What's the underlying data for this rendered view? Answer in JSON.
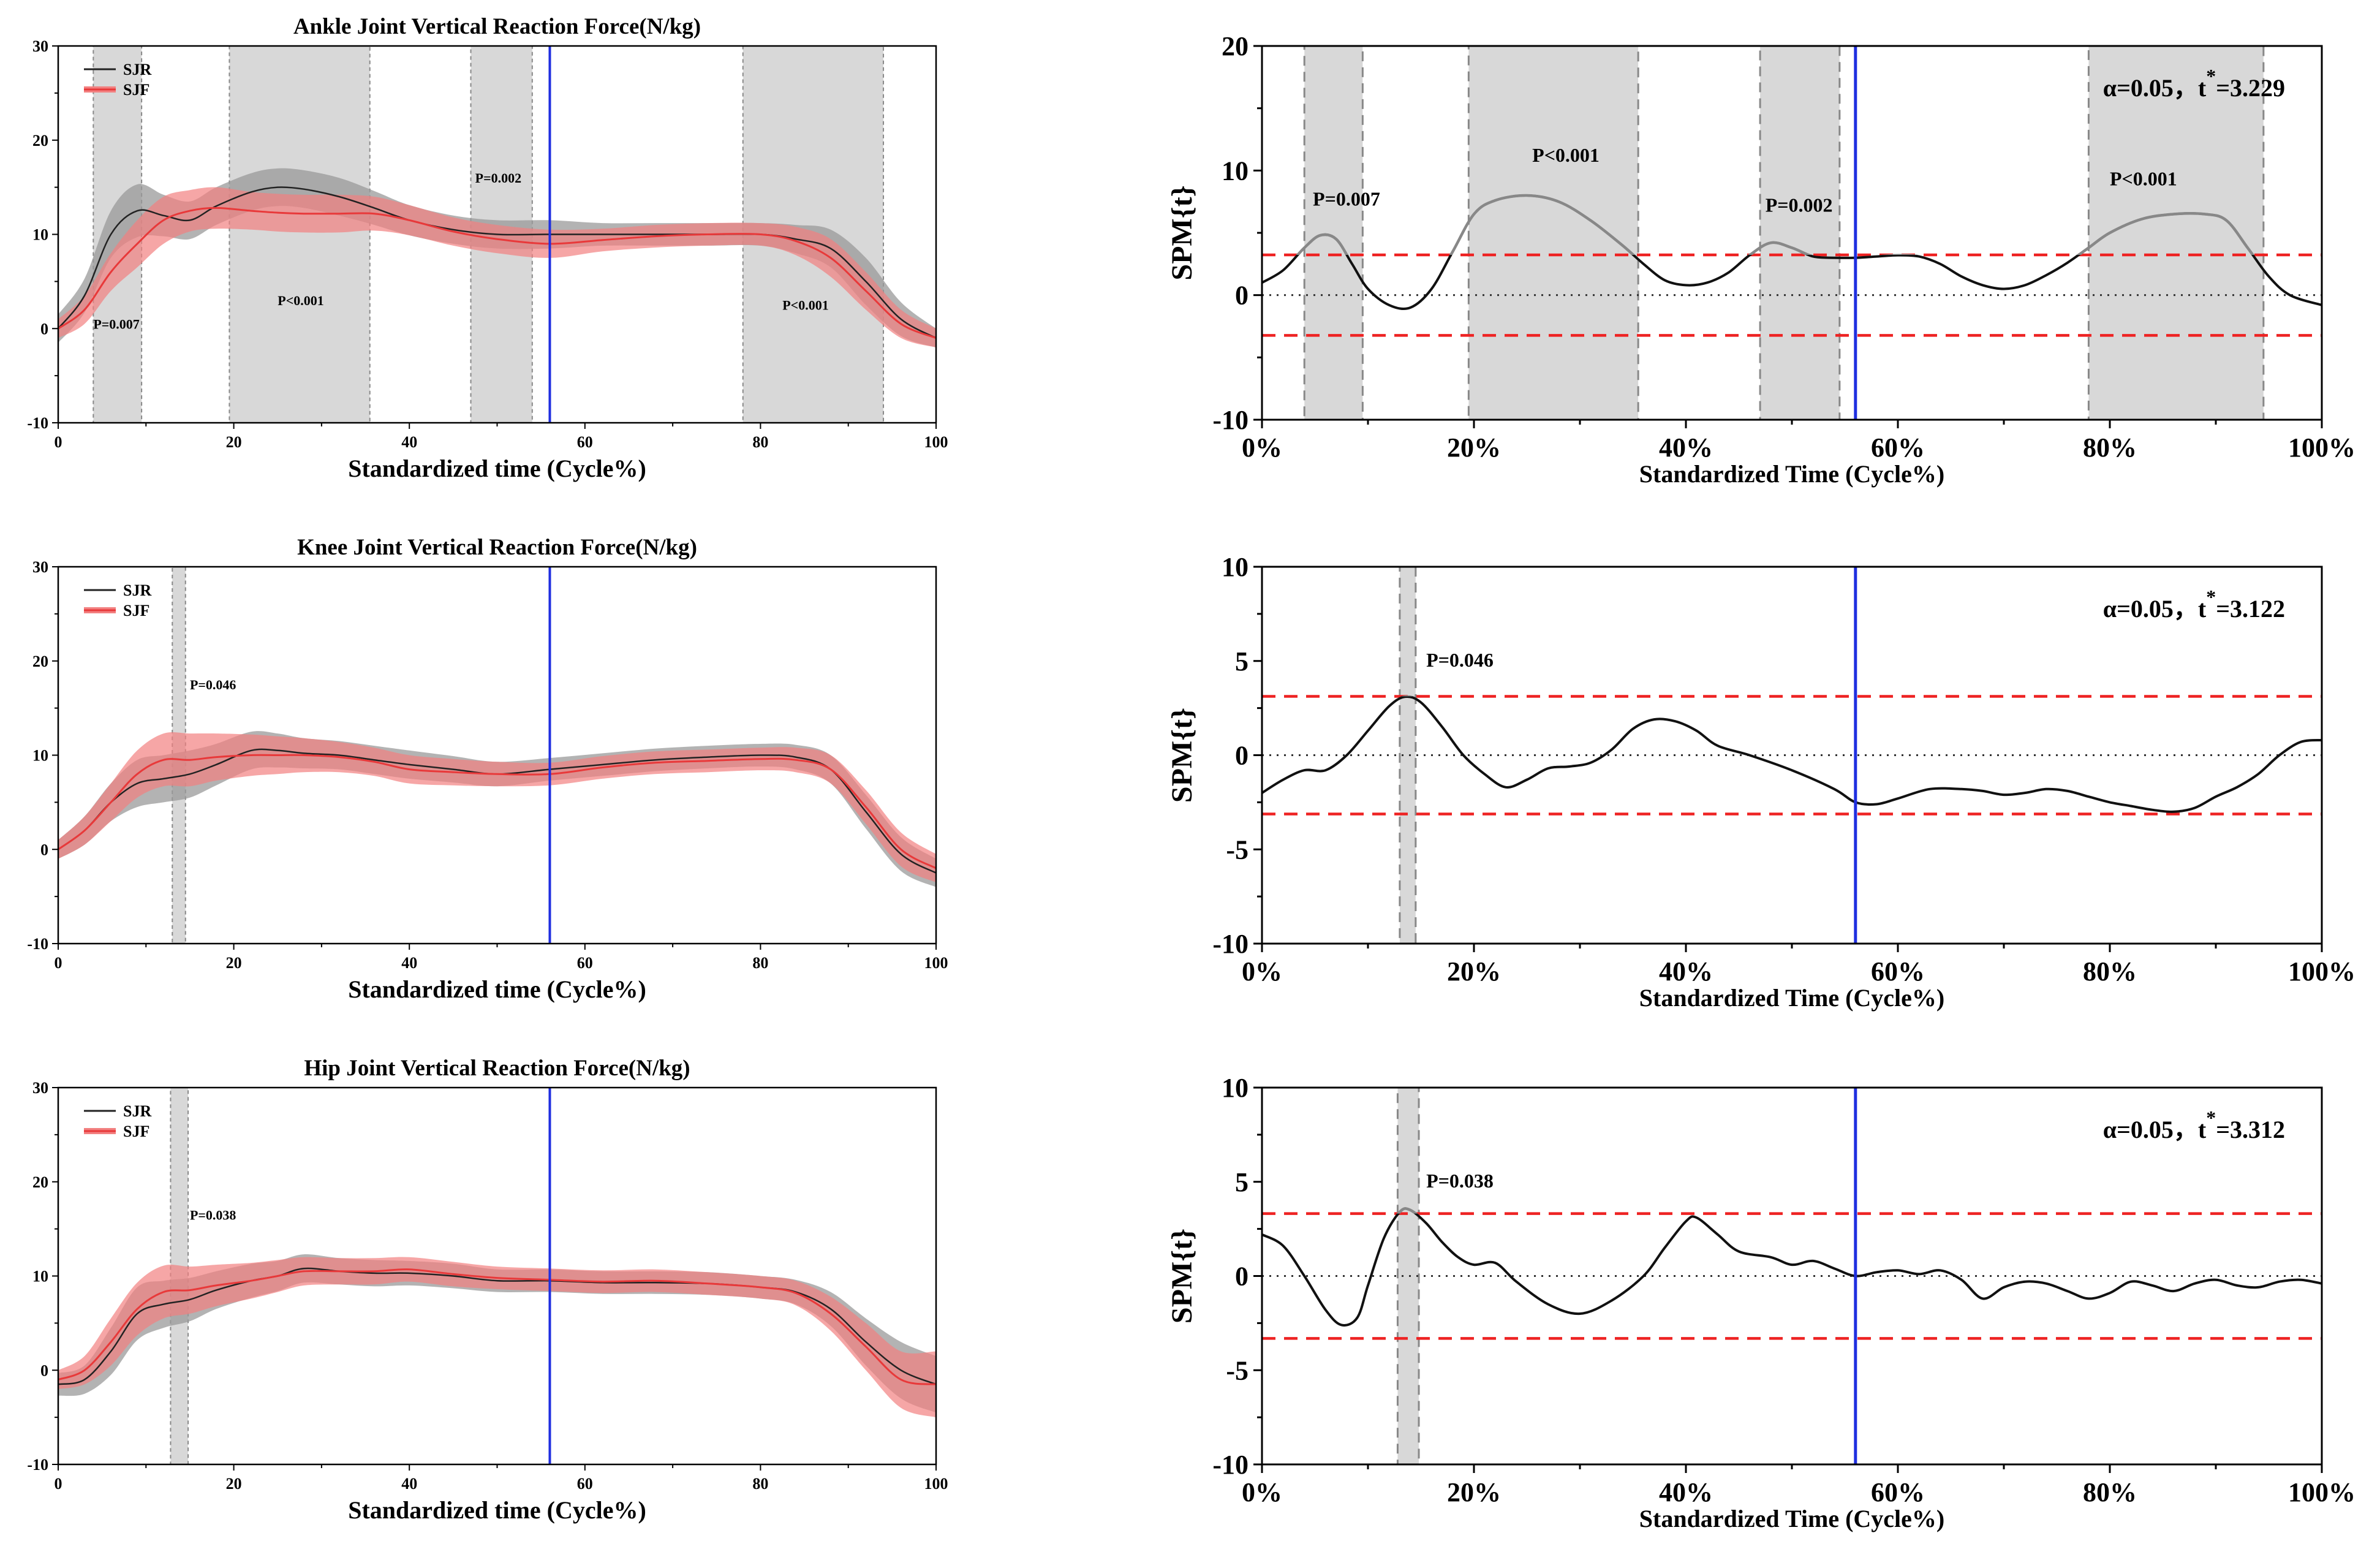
{
  "colors": {
    "sjr": "#222222",
    "sjr_band": "#9a9a9a",
    "sjf": "#e8393a",
    "sjf_band": "#f28080",
    "sig_region": "#d8d8d8",
    "sig_border": "#888888",
    "stance_line": "#1f2fe0",
    "threshold": "#ee2222",
    "spm_curve": "#111111",
    "spm_curve_sig": "#888888"
  },
  "chart_data": [
    {
      "type": "line",
      "panel": "left",
      "title": "Ankle Joint Vertical Reaction Force(N/kg)",
      "xlabel": "Standardized time (Cycle%)",
      "ylabel": "",
      "xlim": [
        0,
        100
      ],
      "ylim": [
        -10,
        30
      ],
      "xticks": [
        0,
        20,
        40,
        60,
        80,
        100
      ],
      "xtick_labels": [
        "0",
        "20",
        "40",
        "60",
        "80",
        "100"
      ],
      "yticks": [
        -10,
        0,
        10,
        20,
        30
      ],
      "ytick_labels": [
        "-10",
        "0",
        "10",
        "20",
        "30"
      ],
      "legend": [
        "SJR",
        "SJF"
      ],
      "legend_position": "top-left",
      "vline_x": 56,
      "x": [
        0,
        3,
        6,
        9,
        12,
        15,
        18,
        22,
        25,
        28,
        32,
        36,
        40,
        45,
        50,
        56,
        62,
        68,
        74,
        80,
        84,
        88,
        92,
        96,
        100
      ],
      "series": [
        {
          "name": "SJR",
          "values": [
            0,
            3.5,
            10,
            12.5,
            12,
            11.5,
            13,
            14.5,
            15,
            14.8,
            14,
            12.8,
            11.5,
            10.5,
            10,
            10,
            10,
            10,
            10,
            10,
            9.5,
            8.5,
            5,
            1,
            -1
          ],
          "sd": [
            1.5,
            1.8,
            2.5,
            2.8,
            2.2,
            2,
            2,
            2,
            2,
            2,
            2,
            1.8,
            1.6,
            1.5,
            1.5,
            1.5,
            1.2,
            1.2,
            1.2,
            1.2,
            1.5,
            2,
            2.5,
            1.8,
            1
          ]
        },
        {
          "name": "SJF",
          "values": [
            0,
            2,
            6,
            9,
            11.5,
            12.5,
            12.8,
            12.5,
            12.3,
            12.2,
            12.2,
            12.2,
            11.5,
            10.3,
            9.5,
            9,
            9.4,
            9.8,
            10,
            10,
            9.3,
            7.5,
            4,
            0.5,
            -1
          ],
          "sd": [
            1,
            1.5,
            2,
            2.5,
            2.5,
            2.2,
            2.2,
            2,
            2,
            2,
            2,
            1.8,
            1.6,
            1.5,
            1.5,
            1.5,
            1.2,
            1.2,
            1.2,
            1.2,
            1.5,
            2,
            2,
            1.5,
            1
          ]
        }
      ],
      "sig_regions": [
        {
          "x0": 4,
          "x1": 9.5,
          "label": "P=0.007",
          "label_x": 4,
          "label_y": 0
        },
        {
          "x0": 19.5,
          "x1": 35.5,
          "label": "P<0.001",
          "label_x": 25,
          "label_y": 2.5
        },
        {
          "x0": 47,
          "x1": 54,
          "label": "P=0.002",
          "label_x": 47.5,
          "label_y": 15.5
        },
        {
          "x0": 78,
          "x1": 94,
          "label": "P<0.001",
          "label_x": 82.5,
          "label_y": 2
        }
      ]
    },
    {
      "type": "line",
      "panel": "right",
      "title": "",
      "xlabel": "Standardized Time (Cycle%)",
      "ylabel": "SPM{t}",
      "xlim": [
        0,
        1
      ],
      "ylim": [
        -10,
        20
      ],
      "xticks": [
        0,
        0.2,
        0.4,
        0.6,
        0.8,
        1.0
      ],
      "xtick_labels": [
        "0%",
        "20%",
        "40%",
        "60%",
        "80%",
        "100%"
      ],
      "yticks": [
        -10,
        0,
        10,
        20
      ],
      "ytick_labels": [
        "-10",
        "0",
        "10",
        "20"
      ],
      "vline_x": 0.56,
      "threshold": 3.229,
      "threshold_text": {
        "prefix": "α=0.05，t",
        "star": "*",
        "value": "=3.229"
      },
      "x": [
        0,
        0.02,
        0.04,
        0.055,
        0.07,
        0.085,
        0.1,
        0.12,
        0.14,
        0.16,
        0.18,
        0.2,
        0.22,
        0.25,
        0.28,
        0.31,
        0.34,
        0.36,
        0.38,
        0.4,
        0.42,
        0.44,
        0.46,
        0.48,
        0.5,
        0.52,
        0.54,
        0.56,
        0.58,
        0.6,
        0.62,
        0.64,
        0.66,
        0.68,
        0.7,
        0.72,
        0.74,
        0.76,
        0.78,
        0.8,
        0.83,
        0.86,
        0.89,
        0.91,
        0.93,
        0.95,
        0.97,
        1.0
      ],
      "values": [
        1,
        2,
        3.8,
        4.8,
        4.5,
        2.5,
        0.5,
        -0.8,
        -1,
        0.5,
        3.5,
        6.5,
        7.6,
        8,
        7.5,
        6,
        4,
        2.5,
        1.2,
        0.8,
        1,
        1.8,
        3.2,
        4.2,
        3.8,
        3.1,
        3,
        3,
        3.1,
        3.2,
        3.1,
        2.5,
        1.5,
        0.8,
        0.5,
        0.8,
        1.6,
        2.6,
        3.8,
        5,
        6.1,
        6.5,
        6.5,
        6,
        3.8,
        1.5,
        0,
        -0.8
      ],
      "sig_regions": [
        {
          "x0": 0.04,
          "x1": 0.095,
          "label": "P=0.007",
          "label_x": 0.048,
          "label_y": 7.2
        },
        {
          "x0": 0.195,
          "x1": 0.355,
          "label": "P<0.001",
          "label_x": 0.255,
          "label_y": 10.7
        },
        {
          "x0": 0.47,
          "x1": 0.545,
          "label": "P=0.002",
          "label_x": 0.475,
          "label_y": 6.7
        },
        {
          "x0": 0.78,
          "x1": 0.945,
          "label": "P<0.001",
          "label_x": 0.8,
          "label_y": 8.8
        }
      ]
    },
    {
      "type": "line",
      "panel": "left",
      "title": "Knee Joint Vertical Reaction Force(N/kg)",
      "xlabel": "Standardized time (Cycle%)",
      "ylabel": "",
      "xlim": [
        0,
        100
      ],
      "ylim": [
        -10,
        30
      ],
      "xticks": [
        0,
        20,
        40,
        60,
        80,
        100
      ],
      "xtick_labels": [
        "0",
        "20",
        "40",
        "60",
        "80",
        "100"
      ],
      "yticks": [
        -10,
        0,
        10,
        20,
        30
      ],
      "ytick_labels": [
        "-10",
        "0",
        "10",
        "20",
        "30"
      ],
      "legend": [
        "SJR",
        "SJF"
      ],
      "legend_position": "top-left",
      "vline_x": 56,
      "x": [
        0,
        3,
        6,
        9,
        12,
        15,
        18,
        22,
        25,
        28,
        32,
        36,
        40,
        45,
        50,
        56,
        62,
        68,
        74,
        80,
        84,
        88,
        92,
        96,
        100
      ],
      "series": [
        {
          "name": "SJR",
          "values": [
            0,
            2,
            5,
            7,
            7.5,
            8,
            9,
            10.5,
            10.5,
            10.2,
            10,
            9.5,
            9,
            8.5,
            8,
            8.5,
            9,
            9.5,
            9.8,
            10,
            9.8,
            8.5,
            4,
            -0.5,
            -2.5
          ],
          "sd": [
            1,
            1.5,
            2,
            2.5,
            2.5,
            2.5,
            2.2,
            2,
            1.8,
            1.6,
            1.5,
            1.5,
            1.5,
            1.4,
            1.3,
            1.2,
            1.2,
            1.2,
            1.2,
            1.2,
            1.3,
            1.5,
            1.8,
            1.8,
            1.5
          ]
        },
        {
          "name": "SJF",
          "values": [
            0,
            2,
            5,
            8,
            9.5,
            9.5,
            9.8,
            10,
            10,
            10,
            9.8,
            9.3,
            8.5,
            8.2,
            8,
            8,
            8.7,
            9.2,
            9.4,
            9.6,
            9.5,
            8.5,
            4.5,
            0,
            -2
          ],
          "sd": [
            1,
            1.5,
            2,
            2.5,
            2.8,
            2.8,
            2.5,
            2.2,
            2,
            1.8,
            1.6,
            1.5,
            1.5,
            1.4,
            1.3,
            1.2,
            1.2,
            1.2,
            1.2,
            1.2,
            1.3,
            1.5,
            1.8,
            1.8,
            1.5
          ]
        }
      ],
      "sig_regions": [
        {
          "x0": 13,
          "x1": 14.5,
          "label": "P=0.046",
          "label_x": 15,
          "label_y": 17
        }
      ]
    },
    {
      "type": "line",
      "panel": "right",
      "title": "",
      "xlabel": "Standardized Time (Cycle%)",
      "ylabel": "SPM{t}",
      "xlim": [
        0,
        1
      ],
      "ylim": [
        -10,
        10
      ],
      "xticks": [
        0,
        0.2,
        0.4,
        0.6,
        0.8,
        1.0
      ],
      "xtick_labels": [
        "0%",
        "20%",
        "40%",
        "60%",
        "80%",
        "100%"
      ],
      "yticks": [
        -10,
        -5,
        0,
        5,
        10
      ],
      "ytick_labels": [
        "-10",
        "-5",
        "0",
        "5",
        "10"
      ],
      "vline_x": 0.56,
      "threshold": 3.122,
      "threshold_text": {
        "prefix": "α=0.05，t",
        "star": "*",
        "value": "=3.122"
      },
      "x": [
        0,
        0.02,
        0.04,
        0.06,
        0.08,
        0.1,
        0.12,
        0.135,
        0.15,
        0.17,
        0.19,
        0.21,
        0.23,
        0.25,
        0.27,
        0.29,
        0.31,
        0.33,
        0.35,
        0.37,
        0.39,
        0.41,
        0.43,
        0.46,
        0.5,
        0.54,
        0.56,
        0.58,
        0.6,
        0.63,
        0.66,
        0.68,
        0.7,
        0.72,
        0.74,
        0.76,
        0.78,
        0.8,
        0.82,
        0.84,
        0.86,
        0.88,
        0.9,
        0.92,
        0.94,
        0.96,
        0.98,
        1.0
      ],
      "values": [
        -2,
        -1.3,
        -0.8,
        -0.8,
        0,
        1.3,
        2.6,
        3.1,
        2.8,
        1.5,
        0,
        -1,
        -1.7,
        -1.3,
        -0.7,
        -0.6,
        -0.4,
        0.3,
        1.4,
        1.9,
        1.8,
        1.3,
        0.5,
        0,
        -0.8,
        -1.8,
        -2.5,
        -2.6,
        -2.3,
        -1.8,
        -1.8,
        -1.9,
        -2.1,
        -2.0,
        -1.8,
        -1.9,
        -2.2,
        -2.5,
        -2.7,
        -2.9,
        -3.0,
        -2.8,
        -2.2,
        -1.7,
        -1.0,
        0,
        0.7,
        0.8
      ],
      "sig_regions": [
        {
          "x0": 0.13,
          "x1": 0.145,
          "label": "P=0.046",
          "label_x": 0.155,
          "label_y": 4.7
        }
      ]
    },
    {
      "type": "line",
      "panel": "left",
      "title": "Hip Joint Vertical Reaction Force(N/kg)",
      "xlabel": "Standardized time (Cycle%)",
      "ylabel": "",
      "xlim": [
        0,
        100
      ],
      "ylim": [
        -10,
        30
      ],
      "xticks": [
        0,
        20,
        40,
        60,
        80,
        100
      ],
      "xtick_labels": [
        "0",
        "20",
        "40",
        "60",
        "80",
        "100"
      ],
      "yticks": [
        -10,
        0,
        10,
        20,
        30
      ],
      "ytick_labels": [
        "-10",
        "0",
        "10",
        "20",
        "30"
      ],
      "legend": [
        "SJR",
        "SJF"
      ],
      "legend_position": "top-left",
      "vline_x": 56,
      "x": [
        0,
        3,
        6,
        9,
        12,
        15,
        18,
        22,
        25,
        28,
        32,
        36,
        40,
        45,
        50,
        56,
        62,
        68,
        74,
        80,
        84,
        88,
        92,
        96,
        100
      ],
      "series": [
        {
          "name": "SJR",
          "values": [
            -1.5,
            -1,
            2,
            6,
            7,
            7.5,
            8.5,
            9.5,
            10,
            10.8,
            10.5,
            10.3,
            10.3,
            10,
            9.5,
            9.5,
            9.3,
            9.3,
            9.2,
            8.8,
            8.3,
            6.5,
            3,
            0,
            -1.5
          ],
          "sd": [
            1.2,
            1.5,
            2.5,
            2.8,
            2.5,
            2.3,
            2,
            1.8,
            1.6,
            1.5,
            1.4,
            1.4,
            1.3,
            1.3,
            1.2,
            1.2,
            1.2,
            1.2,
            1.2,
            1.2,
            1.3,
            1.8,
            2.5,
            3,
            3
          ]
        },
        {
          "name": "SJF",
          "values": [
            -1,
            0,
            3,
            6.5,
            8.3,
            8.5,
            9,
            9.5,
            10,
            10.5,
            10.5,
            10.5,
            10.7,
            10.2,
            9.8,
            9.6,
            9.4,
            9.5,
            9.2,
            8.8,
            8.2,
            6,
            2.5,
            -1,
            -1.5
          ],
          "sd": [
            1,
            1.5,
            2.5,
            2.8,
            2.8,
            2.5,
            2.2,
            1.9,
            1.7,
            1.5,
            1.4,
            1.4,
            1.3,
            1.3,
            1.2,
            1.2,
            1.2,
            1.2,
            1.2,
            1.2,
            1.3,
            1.8,
            2.5,
            3,
            3.5
          ]
        }
      ],
      "sig_regions": [
        {
          "x0": 12.8,
          "x1": 14.8,
          "label": "P=0.038",
          "label_x": 15,
          "label_y": 16
        }
      ]
    },
    {
      "type": "line",
      "panel": "right",
      "title": "",
      "xlabel": "Standardized Time (Cycle%)",
      "ylabel": "SPM{t}",
      "xlim": [
        0,
        1
      ],
      "ylim": [
        -10,
        10
      ],
      "xticks": [
        0,
        0.2,
        0.4,
        0.6,
        0.8,
        1.0
      ],
      "xtick_labels": [
        "0%",
        "20%",
        "40%",
        "60%",
        "80%",
        "100%"
      ],
      "yticks": [
        -10,
        -5,
        0,
        5,
        10
      ],
      "ytick_labels": [
        "-10",
        "-5",
        "0",
        "5",
        "10"
      ],
      "vline_x": 0.56,
      "threshold": 3.312,
      "threshold_text": {
        "prefix": "α=0.05，t",
        "star": "*",
        "value": "=3.312"
      },
      "x": [
        0,
        0.02,
        0.04,
        0.06,
        0.075,
        0.09,
        0.1,
        0.115,
        0.13,
        0.14,
        0.155,
        0.17,
        0.185,
        0.2,
        0.22,
        0.24,
        0.27,
        0.3,
        0.33,
        0.36,
        0.38,
        0.4,
        0.41,
        0.43,
        0.45,
        0.48,
        0.5,
        0.52,
        0.54,
        0.56,
        0.58,
        0.6,
        0.62,
        0.64,
        0.66,
        0.68,
        0.7,
        0.72,
        0.74,
        0.76,
        0.78,
        0.8,
        0.82,
        0.84,
        0.86,
        0.88,
        0.9,
        0.92,
        0.94,
        0.96,
        0.98,
        1.0
      ],
      "values": [
        2.2,
        1.6,
        0,
        -1.8,
        -2.6,
        -2.2,
        -0.5,
        2,
        3.4,
        3.5,
        2.8,
        1.8,
        1.0,
        0.6,
        0.7,
        -0.3,
        -1.5,
        -2,
        -1.3,
        0,
        1.5,
        2.9,
        3.1,
        2.2,
        1.3,
        1.0,
        0.6,
        0.8,
        0.4,
        0,
        0.2,
        0.3,
        0.1,
        0.3,
        -0.2,
        -1.2,
        -0.6,
        -0.3,
        -0.4,
        -0.8,
        -1.2,
        -0.9,
        -0.3,
        -0.5,
        -0.8,
        -0.4,
        -0.2,
        -0.5,
        -0.6,
        -0.3,
        -0.2,
        -0.4
      ],
      "sig_regions": [
        {
          "x0": 0.128,
          "x1": 0.148,
          "label": "P=0.038",
          "label_x": 0.155,
          "label_y": 4.7
        }
      ]
    }
  ]
}
